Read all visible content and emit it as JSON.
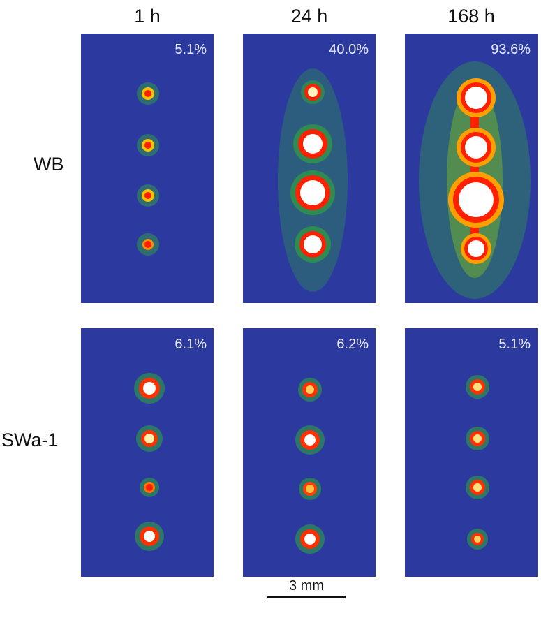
{
  "columns": [
    "1 h",
    "24 h",
    "168 h"
  ],
  "rows": [
    "WB",
    "SWa-1"
  ],
  "panels": [
    {
      "percent": "5.1%"
    },
    {
      "percent": "40.0%"
    },
    {
      "percent": "93.6%"
    },
    {
      "percent": "6.1%"
    },
    {
      "percent": "6.2%"
    },
    {
      "percent": "5.1%"
    }
  ],
  "scale_bar": {
    "label": "3 mm"
  },
  "colors": {
    "background": "#2c3aa0",
    "spot_core": "#ffffff",
    "spot_red": "#ff2000",
    "spot_green": "#2fa040"
  }
}
